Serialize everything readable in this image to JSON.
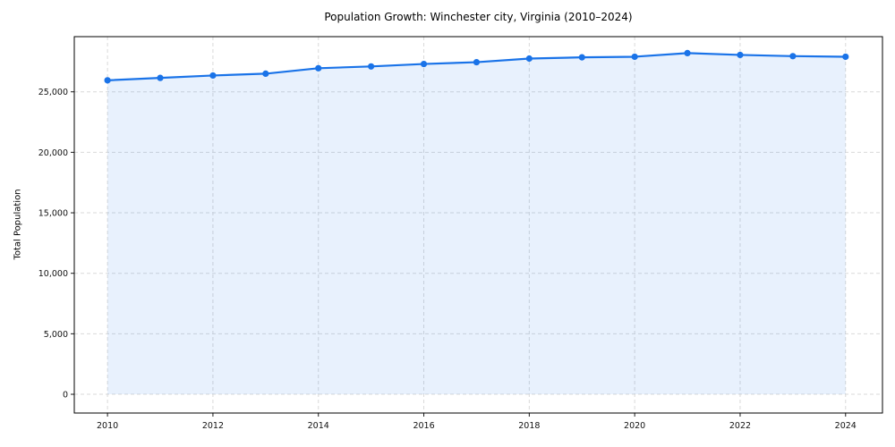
{
  "figure": {
    "title": "Population Growth: Winchester city, Virginia (2010–2024)"
  },
  "chart_data": {
    "type": "line",
    "title": "Population Growth: Winchester city, Virginia (2010–2024)",
    "xlabel": "",
    "ylabel": "Total Population",
    "x": [
      2010,
      2011,
      2012,
      2013,
      2014,
      2015,
      2016,
      2017,
      2018,
      2019,
      2020,
      2021,
      2022,
      2023,
      2024
    ],
    "series": [
      {
        "name": "Total Population",
        "values": [
          25950,
          26150,
          26350,
          26500,
          26950,
          27100,
          27300,
          27450,
          27750,
          27850,
          27900,
          28200,
          28050,
          27950,
          27900
        ]
      }
    ],
    "xticks": [
      2010,
      2012,
      2014,
      2016,
      2018,
      2020,
      2022,
      2024
    ],
    "yticks": [
      0,
      5000,
      10000,
      15000,
      20000,
      25000
    ],
    "xlim": [
      2009.37,
      2024.7
    ],
    "ylim": [
      -1550,
      29560
    ],
    "grid": true,
    "legend": "none",
    "area_fill": true,
    "line_color": "#1a73e8",
    "marker_color": "#1a73e8",
    "fill_color": "rgba(26,115,232,0.10)",
    "grid_color": "#d9d9d9",
    "background": "#ffffff"
  }
}
